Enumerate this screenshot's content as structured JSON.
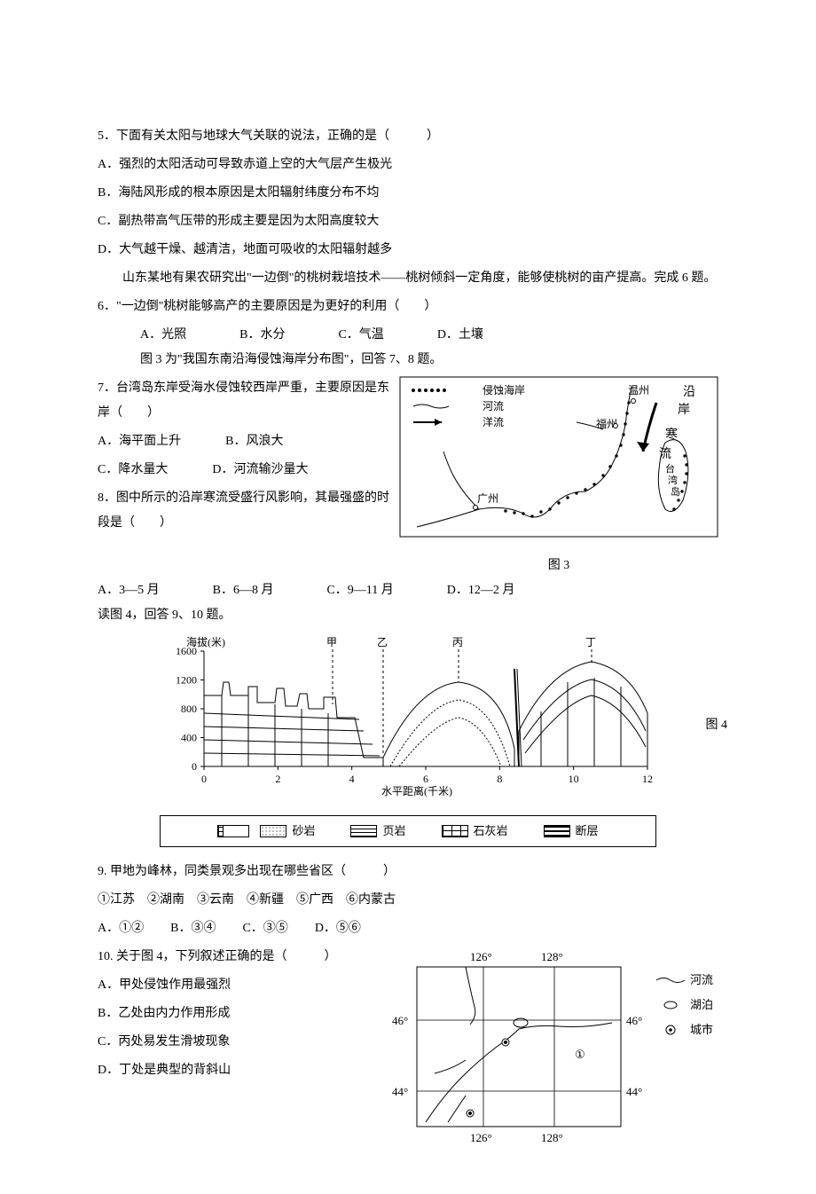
{
  "q5": {
    "stem": "5．下面有关太阳与地球大气关联的说法，正确的是（　　　）",
    "A": "A．强烈的太阳活动可导致赤道上空的大气层产生极光",
    "B": "B．海陆风形成的根本原因是太阳辐射纬度分布不均",
    "C": "C．副热带高气压带的形成主要是因为太阳高度较大",
    "D": "D．大气越干燥、越清洁，地面可吸收的太阳辐射越多"
  },
  "intro6": "山东某地有果农研究出\"一边倒\"的桃树栽培技术——桃树倾斜一定角度，能够使桃树的亩产提高。完成 6 题。",
  "q6": {
    "stem": "6．\"一边倒\"桃树能够高产的主要原因是为更好的利用（　　）",
    "A": "A．光照",
    "B": "B．水分",
    "C": "C．气温",
    "D": "D．土壤"
  },
  "intro7": "图 3 为\"我国东南沿海侵蚀海岸分布图\"，回答 7、8 题。",
  "q7": {
    "stem": "7．台湾岛东岸受海水侵蚀较西岸严重，主要原因是东岸（　　）",
    "A": "A．海平面上升",
    "B": "B．风浪大",
    "C": "C．降水量大",
    "D": "D．河流输沙量大"
  },
  "q8": {
    "stem": "8．图中所示的沿岸寒流受盛行风影响，其最强盛的时段是（　　）",
    "A": "A．3—5 月",
    "B": "B．6—8 月",
    "C": "C．9—11 月",
    "D": "D．12—2 月"
  },
  "fig3": {
    "caption": "图 3",
    "legend": {
      "erode": "侵蚀海岸",
      "river": "河流",
      "current": "洋流"
    },
    "cities": {
      "wz": "温州",
      "fz": "福州",
      "gz": "广州"
    },
    "labels": {
      "coast": "沿岸寒流",
      "tw": "台湾岛"
    },
    "colors": {
      "stroke": "#000000",
      "bg": "#ffffff"
    }
  },
  "intro9": "读图 4，回答 9、10 题。",
  "fig4": {
    "caption": "图 4",
    "ylabel": "海拔(米)",
    "xlabel": "水平距离(千米)",
    "yticks": [
      0,
      400,
      800,
      1200,
      1600
    ],
    "xticks": [
      0,
      2,
      4,
      6,
      8,
      10,
      12
    ],
    "markers": {
      "jia": "甲",
      "yi": "乙",
      "bing": "丙",
      "ding": "丁"
    },
    "legend": {
      "sand": "砂岩",
      "shale": "页岩",
      "lime": "石灰岩",
      "fault": "断层"
    },
    "colors": {
      "axis": "#000000",
      "bg": "#ffffff"
    },
    "font_size_axis": 12
  },
  "q9": {
    "stem": "9. 甲地为峰林，同类景观多出现在哪些省区（　　　）",
    "list": "①江苏　②湖南　③云南　④新疆　⑤广西　⑥内蒙古",
    "A": "A．①②",
    "B": "B．③④",
    "C": "C．③⑤",
    "D": "D．⑤⑥"
  },
  "q10": {
    "stem": "10. 关于图 4，下列叙述正确的是（　　　）",
    "A": "A．甲处侵蚀作用最强烈",
    "B": "B．乙处由内力作用形成",
    "C": "C．丙处易发生滑坡现象",
    "D": "D．丁处是典型的背斜山"
  },
  "fig5": {
    "lons": [
      "126°",
      "128°"
    ],
    "lats": [
      "46°",
      "44°"
    ],
    "legend": {
      "river": "河流",
      "lake": "湖泊",
      "city": "城市"
    },
    "mark": "①",
    "colors": {
      "stroke": "#000000"
    }
  }
}
